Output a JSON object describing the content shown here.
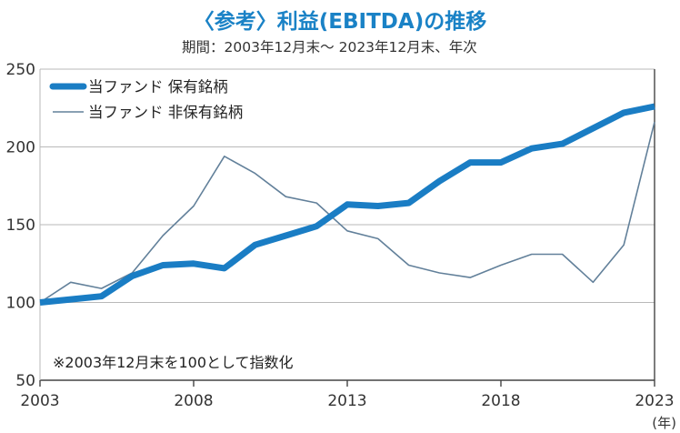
{
  "title": "〈参考〉利益(EBITDA)の推移",
  "subtitle": "期間：2003年12月末～ 2023年12月末、年次",
  "note": "※2003年12月末を100として指数化",
  "x_unit": "(年)",
  "colors": {
    "held": "#1a7dc4",
    "non_held": "#62809a",
    "grid": "#b9b9b9",
    "axis": "#444444"
  },
  "chart_data": {
    "type": "line",
    "title": "〈参考〉利益(EBITDA)の推移",
    "subtitle": "期間：2003年12月末～ 2023年12月末、年次",
    "xlabel": "(年)",
    "ylabel": "",
    "x": [
      2003,
      2004,
      2005,
      2006,
      2007,
      2008,
      2009,
      2010,
      2011,
      2012,
      2013,
      2014,
      2015,
      2016,
      2017,
      2018,
      2019,
      2020,
      2021,
      2022,
      2023
    ],
    "x_ticks": [
      "2003",
      "2008",
      "2013",
      "2018",
      "2023"
    ],
    "y_ticks": [
      "50",
      "100",
      "150",
      "200",
      "250"
    ],
    "ylim": [
      50,
      250
    ],
    "xlim": [
      2003,
      2023
    ],
    "grid": "horizontal",
    "legend_position": "top-left",
    "series": [
      {
        "name": "当ファンド 保有銘柄",
        "line": "thick",
        "values": [
          100,
          102,
          104,
          117,
          124,
          125,
          122,
          137,
          143,
          149,
          163,
          162,
          164,
          178,
          190,
          190,
          199,
          202,
          212,
          222,
          226
        ]
      },
      {
        "name": "当ファンド 非保有銘柄",
        "line": "thin",
        "values": [
          100,
          113,
          109,
          119,
          143,
          162,
          194,
          183,
          168,
          164,
          146,
          141,
          124,
          119,
          116,
          124,
          131,
          131,
          113,
          137,
          216
        ]
      }
    ]
  }
}
